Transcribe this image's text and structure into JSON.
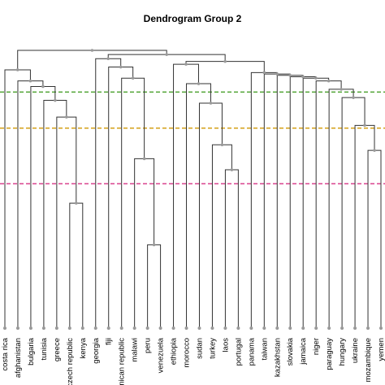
{
  "chart_data": {
    "type": "dendrogram",
    "title": "Dendrogram Group 2",
    "leaves": [
      "costa rica",
      "afghanistan",
      "bulgaria",
      "tunisia",
      "greece",
      "czech republic",
      "kenya",
      "georgia",
      "fiji",
      "dominican republic",
      "malawi",
      "peru",
      "venezuela",
      "ethiopia",
      "morocco",
      "sudan",
      "turkey",
      "laos",
      "portugal",
      "panama",
      "taiwan",
      "kazakhstan",
      "slovakia",
      "jamaica",
      "niger",
      "paraguay",
      "hungary",
      "ukraine",
      "mozambique",
      "yemen"
    ],
    "merges": [
      {
        "a": 11,
        "b": 12,
        "height": 0.3
      },
      {
        "a": 5,
        "b": 6,
        "height": 0.45
      },
      {
        "a": 17,
        "b": 18,
        "height": 0.57
      },
      {
        "a": "m0",
        "b": 10,
        "height": 0.61
      },
      {
        "a": 28,
        "b": 29,
        "height": 0.64
      },
      {
        "a": 16,
        "b": "m2",
        "height": 0.66
      },
      {
        "a": 27,
        "b": "m4",
        "height": 0.73
      },
      {
        "a": 4,
        "b": "m1",
        "height": 0.76
      },
      {
        "a": 15,
        "b": "m5",
        "height": 0.81
      },
      {
        "a": 3,
        "b": "m7",
        "height": 0.82
      },
      {
        "a": 26,
        "b": "m6",
        "height": 0.83
      },
      {
        "a": 25,
        "b": "m10",
        "height": 0.86
      },
      {
        "a": 2,
        "b": "m9",
        "height": 0.87
      },
      {
        "a": 14,
        "b": "m8",
        "height": 0.88
      },
      {
        "a": 1,
        "b": "m12",
        "height": 0.89
      },
      {
        "a": 24,
        "b": "m11",
        "height": 0.89
      },
      {
        "a": 23,
        "b": "m15",
        "height": 0.9
      },
      {
        "a": 9,
        "b": "m3",
        "height": 0.9
      },
      {
        "a": 22,
        "b": "m16",
        "height": 0.905
      },
      {
        "a": 21,
        "b": "m18",
        "height": 0.91
      },
      {
        "a": 20,
        "b": "m19",
        "height": 0.915
      },
      {
        "a": 19,
        "b": "m20",
        "height": 0.92
      },
      {
        "a": 0,
        "b": "m14",
        "height": 0.93
      },
      {
        "a": 8,
        "b": "m17",
        "height": 0.94
      },
      {
        "a": 13,
        "b": "m13",
        "height": 0.95
      },
      {
        "a": "m24",
        "b": "m21",
        "height": 0.96
      },
      {
        "a": 7,
        "b": "m23",
        "height": 0.97
      },
      {
        "a": "m26",
        "b": "m25",
        "height": 0.985
      },
      {
        "a": "m22",
        "b": "m27",
        "height": 1.0
      }
    ],
    "cut_lines": [
      {
        "height": 0.85,
        "color": "#4aa02c"
      },
      {
        "height": 0.72,
        "color": "#d4a017"
      },
      {
        "height": 0.52,
        "color": "#d63384"
      }
    ],
    "ylim": [
      0,
      1.0
    ],
    "line_color": "#333333",
    "node_color": "#999999"
  }
}
